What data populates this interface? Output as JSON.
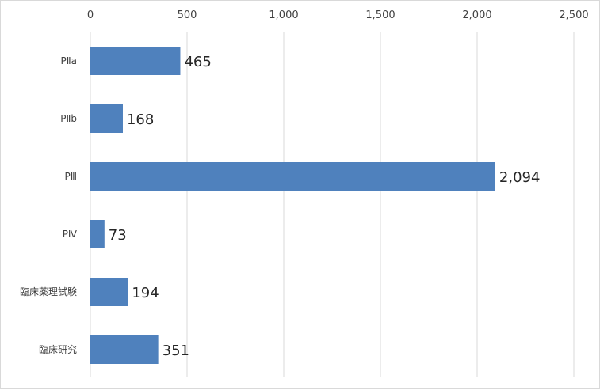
{
  "chart_data": {
    "type": "bar",
    "orientation": "horizontal",
    "categories": [
      "PⅡa",
      "PⅡb",
      "PⅢ",
      "PⅣ",
      "臨床薬理試験",
      "臨床研究"
    ],
    "values": [
      465,
      168,
      2094,
      73,
      194,
      351
    ],
    "data_labels": [
      "465",
      "168",
      "2,094",
      "73",
      "194",
      "351"
    ],
    "x_ticks": [
      0,
      500,
      1000,
      1500,
      2000,
      2500
    ],
    "x_tick_labels": [
      "0",
      "500",
      "1,000",
      "1,500",
      "2,000",
      "2,500"
    ],
    "xlim": [
      0,
      2500
    ],
    "x_axis_position": "top",
    "grid": true,
    "bar_color": "#4f81bd",
    "grid_color": "#d9d9d9",
    "title": "",
    "xlabel": "",
    "ylabel": ""
  }
}
